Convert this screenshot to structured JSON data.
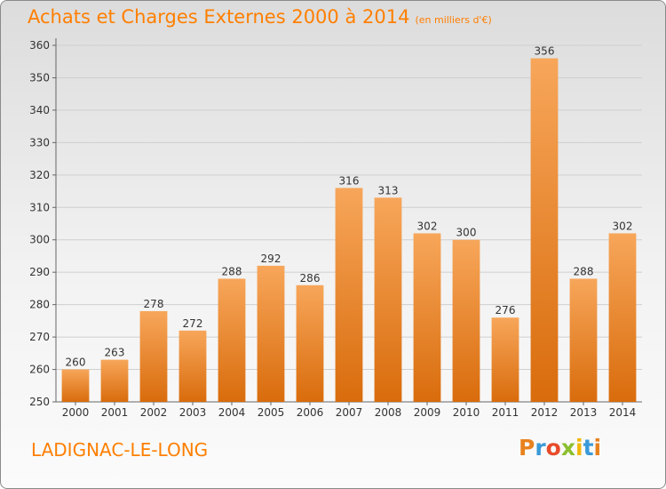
{
  "header": {
    "title": "Achats et Charges Externes 2000 à 2014",
    "subtitle": "(en milliers d'€)"
  },
  "footer": {
    "town": "LADIGNAC-LE-LONG",
    "logo_letters": [
      "P",
      "r",
      "o",
      "x",
      "i",
      "t",
      "i"
    ],
    "logo_colors": [
      "#e8821e",
      "#3a9ad9",
      "#e84b2a",
      "#8bbf2e",
      "#f2b705",
      "#3a9ad9",
      "#e8821e"
    ]
  },
  "chart_data": {
    "type": "bar",
    "title": "Achats et Charges Externes 2000 à 2014",
    "subtitle": "(en milliers d'€)",
    "categories": [
      "2000",
      "2001",
      "2002",
      "2003",
      "2004",
      "2005",
      "2006",
      "2007",
      "2008",
      "2009",
      "2010",
      "2011",
      "2012",
      "2013",
      "2014"
    ],
    "values": [
      260,
      263,
      278,
      272,
      288,
      292,
      286,
      316,
      313,
      302,
      300,
      276,
      356,
      288,
      302
    ],
    "ylim": [
      250,
      360
    ],
    "yticks": [
      250,
      260,
      270,
      280,
      290,
      300,
      310,
      320,
      330,
      340,
      350,
      360
    ],
    "grid": true,
    "bar_color_top": "#f7a65a",
    "bar_color_bottom": "#d96c0c",
    "axis_color": "#666666",
    "grid_color": "#cfcfcf"
  }
}
